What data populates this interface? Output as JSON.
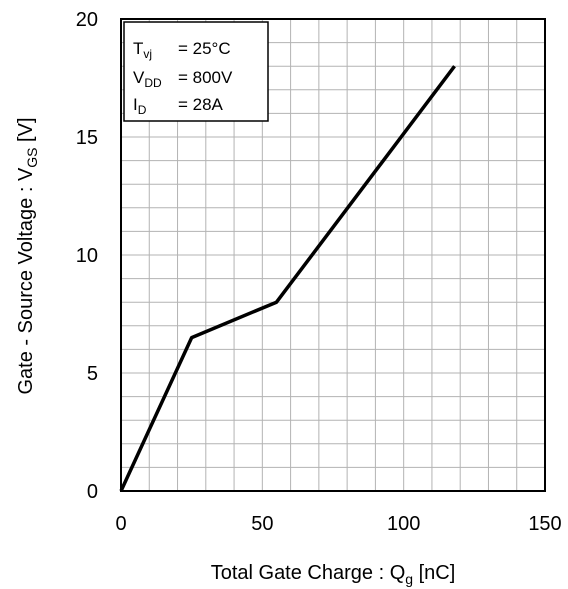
{
  "chart_data": {
    "type": "line",
    "xlabel": {
      "main": "Total Gate Charge : Q",
      "sub": "g",
      "unit": " [nC]"
    },
    "ylabel": {
      "main": "Gate - Source Voltage : V",
      "sub": "GS",
      "unit": " [V]"
    },
    "xlim": [
      0,
      150
    ],
    "ylim": [
      0,
      20
    ],
    "x_ticks": [
      0,
      50,
      100,
      150
    ],
    "y_ticks": [
      0,
      5,
      10,
      15,
      20
    ],
    "x_tick_labels": [
      "0",
      "50",
      "100",
      "150"
    ],
    "y_tick_labels": [
      "0",
      "5",
      "10",
      "15",
      "20"
    ],
    "x_minor_step": 10,
    "y_minor_step": 1,
    "grid": true,
    "legend_position": "top-left",
    "series": [
      {
        "x": [
          0,
          25,
          55,
          118
        ],
        "y": [
          0,
          6.5,
          8,
          18
        ]
      }
    ],
    "conditions": [
      {
        "main": "T",
        "sub": "vj",
        "value": "= 25°C"
      },
      {
        "main": "V",
        "sub": "DD",
        "value": "= 800V"
      },
      {
        "main": "I",
        "sub": "D",
        "value": "= 28A"
      }
    ],
    "colors": {
      "line": "#000000",
      "grid": "#b3b3b3",
      "frame": "#000000",
      "background": "#ffffff"
    }
  }
}
